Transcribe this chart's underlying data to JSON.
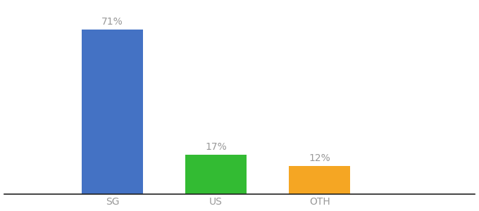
{
  "categories": [
    "SG",
    "US",
    "OTH"
  ],
  "values": [
    71,
    17,
    12
  ],
  "bar_colors": [
    "#4472C4",
    "#33BB33",
    "#F5A623"
  ],
  "label_texts": [
    "71%",
    "17%",
    "12%"
  ],
  "background_color": "#ffffff",
  "text_color": "#999999",
  "label_fontsize": 10,
  "tick_fontsize": 10,
  "ylim": [
    0,
    82
  ],
  "bar_width": 0.13,
  "x_positions": [
    0.28,
    0.5,
    0.72
  ],
  "xlim": [
    0.05,
    1.05
  ]
}
